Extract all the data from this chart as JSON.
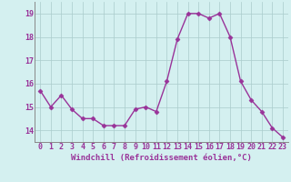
{
  "x": [
    0,
    1,
    2,
    3,
    4,
    5,
    6,
    7,
    8,
    9,
    10,
    11,
    12,
    13,
    14,
    15,
    16,
    17,
    18,
    19,
    20,
    21,
    22,
    23
  ],
  "y": [
    15.7,
    15.0,
    15.5,
    14.9,
    14.5,
    14.5,
    14.2,
    14.2,
    14.2,
    14.9,
    15.0,
    14.8,
    16.1,
    17.9,
    19.0,
    19.0,
    18.8,
    19.0,
    18.0,
    16.1,
    15.3,
    14.8,
    14.1,
    13.7
  ],
  "line_color": "#993399",
  "marker": "D",
  "markersize": 2.5,
  "linewidth": 1.0,
  "bg_color": "#d4f0f0",
  "grid_color": "#aacccc",
  "xlabel": "Windchill (Refroidissement éolien,°C)",
  "xlabel_fontsize": 6.5,
  "tick_fontsize": 6.0,
  "ylim": [
    13.5,
    19.5
  ],
  "yticks": [
    14,
    15,
    16,
    17,
    18,
    19
  ],
  "xticks": [
    0,
    1,
    2,
    3,
    4,
    5,
    6,
    7,
    8,
    9,
    10,
    11,
    12,
    13,
    14,
    15,
    16,
    17,
    18,
    19,
    20,
    21,
    22,
    23
  ]
}
